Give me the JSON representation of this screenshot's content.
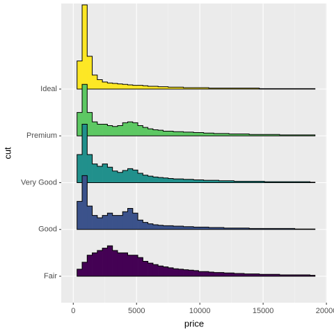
{
  "chart_data": {
    "type": "ridgeline_histogram",
    "xlabel": "price",
    "ylabel": "cut",
    "categories": [
      "Fair",
      "Good",
      "Very Good",
      "Premium",
      "Ideal"
    ],
    "xlim": [
      -950,
      20050
    ],
    "xticks": [
      0,
      5000,
      10000,
      15000,
      20000
    ],
    "x_minor_grid": [
      2500,
      7500,
      12500,
      17500
    ],
    "grid": true,
    "bins": [
      300,
      700,
      1100,
      1500,
      1900,
      2300,
      2700,
      3100,
      3500,
      3900,
      4300,
      4700,
      5100,
      5500,
      5900,
      6300,
      6700,
      7100,
      7500,
      7900,
      8300,
      8700,
      9100,
      9500,
      9900,
      10300,
      10700,
      11100,
      11500,
      11900,
      12300,
      12700,
      13100,
      13500,
      13900,
      14300,
      14700,
      15100,
      15500,
      15900,
      16300,
      16700,
      17100,
      17500,
      17900,
      18300,
      18700,
      19100
    ],
    "series": [
      {
        "name": "Fair",
        "color": "#440154",
        "values": [
          0.15,
          0.3,
          0.45,
          0.5,
          0.55,
          0.6,
          0.65,
          0.55,
          0.5,
          0.5,
          0.45,
          0.45,
          0.4,
          0.32,
          0.28,
          0.25,
          0.22,
          0.2,
          0.18,
          0.16,
          0.15,
          0.14,
          0.13,
          0.12,
          0.1,
          0.1,
          0.09,
          0.08,
          0.08,
          0.07,
          0.07,
          0.06,
          0.06,
          0.05,
          0.05,
          0.05,
          0.04,
          0.04,
          0.04,
          0.04,
          0.03,
          0.03,
          0.03,
          0.03,
          0.03,
          0.03,
          0.02
        ]
      },
      {
        "name": "Good",
        "color": "#3B528B",
        "values": [
          0.6,
          1.15,
          0.5,
          0.3,
          0.25,
          0.3,
          0.35,
          0.3,
          0.3,
          0.38,
          0.45,
          0.35,
          0.2,
          0.15,
          0.12,
          0.1,
          0.09,
          0.08,
          0.08,
          0.07,
          0.07,
          0.06,
          0.06,
          0.05,
          0.05,
          0.05,
          0.04,
          0.04,
          0.04,
          0.03,
          0.03,
          0.03,
          0.03,
          0.03,
          0.02,
          0.02,
          0.02,
          0.02,
          0.02,
          0.02,
          0.02,
          0.02,
          0.02,
          0.01,
          0.01,
          0.01,
          0.01
        ]
      },
      {
        "name": "Very Good",
        "color": "#21908C",
        "values": [
          0.6,
          1.25,
          0.6,
          0.4,
          0.35,
          0.4,
          0.33,
          0.25,
          0.22,
          0.26,
          0.3,
          0.27,
          0.2,
          0.16,
          0.14,
          0.12,
          0.11,
          0.1,
          0.09,
          0.08,
          0.08,
          0.07,
          0.07,
          0.06,
          0.06,
          0.05,
          0.05,
          0.05,
          0.04,
          0.04,
          0.04,
          0.03,
          0.03,
          0.03,
          0.03,
          0.03,
          0.03,
          0.02,
          0.02,
          0.02,
          0.02,
          0.02,
          0.02,
          0.02,
          0.02,
          0.02,
          0.01
        ]
      },
      {
        "name": "Premium",
        "color": "#5DC863",
        "values": [
          0.5,
          1.1,
          0.5,
          0.3,
          0.25,
          0.25,
          0.22,
          0.2,
          0.22,
          0.28,
          0.3,
          0.28,
          0.22,
          0.18,
          0.15,
          0.13,
          0.12,
          0.1,
          0.1,
          0.09,
          0.09,
          0.08,
          0.08,
          0.07,
          0.07,
          0.06,
          0.06,
          0.05,
          0.05,
          0.05,
          0.04,
          0.04,
          0.04,
          0.04,
          0.03,
          0.03,
          0.03,
          0.03,
          0.03,
          0.03,
          0.02,
          0.02,
          0.02,
          0.02,
          0.02,
          0.02,
          0.02
        ]
      },
      {
        "name": "Ideal",
        "color": "#FDE725",
        "values": [
          0.6,
          1.8,
          0.7,
          0.3,
          0.2,
          0.15,
          0.13,
          0.12,
          0.11,
          0.1,
          0.09,
          0.08,
          0.08,
          0.07,
          0.06,
          0.06,
          0.05,
          0.05,
          0.04,
          0.04,
          0.04,
          0.03,
          0.03,
          0.03,
          0.03,
          0.03,
          0.02,
          0.02,
          0.02,
          0.02,
          0.02,
          0.02,
          0.02,
          0.02,
          0.02,
          0.02,
          0.01,
          0.01,
          0.01,
          0.01,
          0.01,
          0.01,
          0.01,
          0.01,
          0.01,
          0.01,
          0.01
        ]
      }
    ]
  }
}
